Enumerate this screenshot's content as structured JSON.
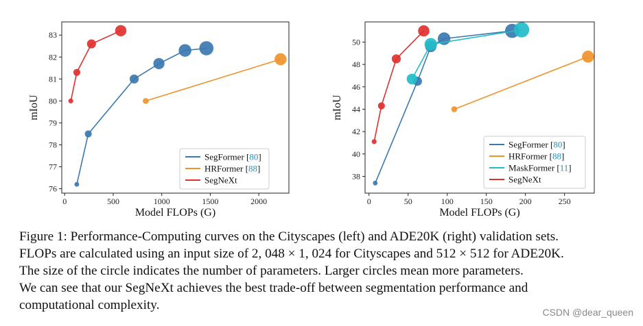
{
  "chart_data": [
    {
      "type": "scatter",
      "xlabel": "Model FLOPs (G)",
      "ylabel": "mIoU",
      "xlim": [
        -30,
        2310
      ],
      "ylim": [
        75.8,
        83.6
      ],
      "xticks": [
        0,
        500,
        1000,
        1500,
        2000
      ],
      "yticks": [
        76,
        77,
        78,
        79,
        80,
        81,
        82,
        83
      ],
      "grid": false,
      "legend_position": "lower-right",
      "series": [
        {
          "name": "SegFormer",
          "ref": "[80]",
          "color": "#3b78b0",
          "x": [
            125,
            243,
            716,
            971,
            1240,
            1460
          ],
          "y": [
            76.2,
            78.5,
            81.0,
            81.7,
            82.3,
            82.4
          ],
          "size": [
            3.7,
            13.7,
            27.6,
            47.3,
            64.1,
            84.7
          ]
        },
        {
          "name": "HRFormer",
          "ref": "[88]",
          "color": "#f0922b",
          "x": [
            835,
            2224
          ],
          "y": [
            80.0,
            81.9
          ],
          "size": [
            8.1,
            56.2
          ]
        },
        {
          "name": "SegNeXt",
          "ref": "",
          "color": "#e0312f",
          "x": [
            63,
            125,
            276,
            578
          ],
          "y": [
            80.0,
            81.3,
            82.6,
            83.2
          ],
          "size": [
            4.3,
            13.9,
            27.6,
            48.9
          ]
        }
      ]
    },
    {
      "type": "scatter",
      "xlabel": "Model FLOPs (G)",
      "ylabel": "mIoU",
      "xlim": [
        -5,
        288
      ],
      "ylim": [
        36.5,
        51.8
      ],
      "xticks": [
        0,
        50,
        100,
        150,
        200,
        250
      ],
      "yticks": [
        38,
        40,
        42,
        44,
        46,
        48,
        50
      ],
      "grid": false,
      "legend_position": "lower-right",
      "series": [
        {
          "name": "SegFormer",
          "ref": "[80]",
          "color": "#3b78b0",
          "x": [
            8,
            62,
            79,
            96,
            183
          ],
          "y": [
            37.4,
            46.5,
            49.6,
            50.3,
            51.0
          ],
          "size": [
            3.7,
            27.5,
            47.3,
            64.1,
            84.7
          ]
        },
        {
          "name": "HRFormer",
          "ref": "[88]",
          "color": "#f0922b",
          "x": [
            109,
            280
          ],
          "y": [
            44.0,
            48.7
          ],
          "size": [
            8.1,
            56.2
          ]
        },
        {
          "name": "MaskFormer",
          "ref": "[11]",
          "color": "#22bdc9",
          "x": [
            55,
            79,
            195
          ],
          "y": [
            46.7,
            49.8,
            51.1
          ],
          "size": [
            42,
            63,
            102
          ]
        },
        {
          "name": "SegNeXt",
          "ref": "",
          "color": "#e0312f",
          "x": [
            6.6,
            15.9,
            34.9,
            70
          ],
          "y": [
            41.1,
            44.3,
            48.5,
            51.0
          ],
          "size": [
            4.3,
            13.9,
            27.6,
            48.9
          ]
        }
      ]
    }
  ],
  "caption": {
    "line1": "Figure 1: Performance-Computing curves on the Cityscapes (left) and ADE20K (right) validation sets.",
    "line2": "FLOPs are calculated using an input size of 2, 048 × 1, 024 for Cityscapes and 512 × 512 for ADE20K.",
    "line3": "The size of the circle indicates the number of parameters. Larger circles mean more parameters.",
    "line4": "We can see that our SegNeXt achieves the best trade-off between segmentation performance and",
    "line5": "computational complexity."
  },
  "watermark": "CSDN @dear_queen"
}
